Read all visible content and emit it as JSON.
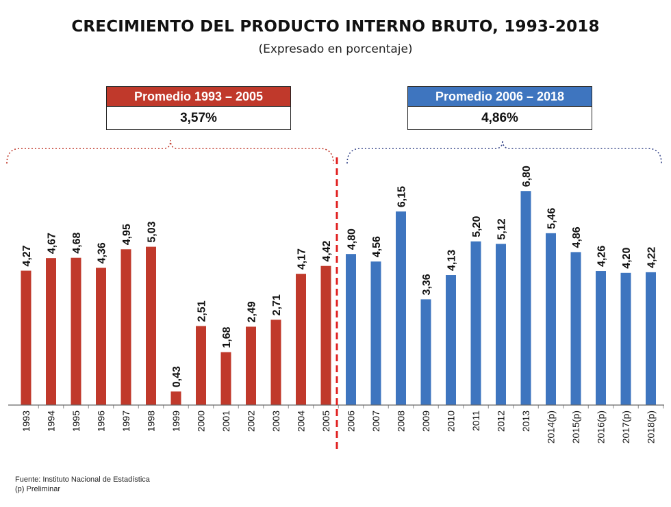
{
  "title": "CRECIMIENTO DEL PRODUCTO INTERNO BRUTO, 1993-2018",
  "subtitle": "(Expresado en porcentaje)",
  "averages": {
    "left": {
      "label": "Promedio 1993 – 2005",
      "value": "3,57%"
    },
    "right": {
      "label": "Promedio 2006 – 2018",
      "value": "4,86%"
    }
  },
  "notes": {
    "source": "Fuente: Instituto Nacional de Estadística",
    "preliminary": "(p) Preliminar"
  },
  "colors": {
    "red": "#c0392b",
    "blue": "#3e75bf"
  },
  "chart_data": {
    "type": "bar",
    "categories": [
      "1993",
      "1994",
      "1995",
      "1996",
      "1997",
      "1998",
      "1999",
      "2000",
      "2001",
      "2002",
      "2003",
      "2004",
      "2005",
      "2006",
      "2007",
      "2008",
      "2009",
      "2010",
      "2011",
      "2012",
      "2013",
      "2014(p)",
      "2015(p)",
      "2016(p)",
      "2017(p)",
      "2018(p)"
    ],
    "values": [
      4.27,
      4.67,
      4.68,
      4.36,
      4.95,
      5.03,
      0.43,
      2.51,
      1.68,
      2.49,
      2.71,
      4.17,
      4.42,
      4.8,
      4.56,
      6.15,
      3.36,
      4.13,
      5.2,
      5.12,
      6.8,
      5.46,
      4.86,
      4.26,
      4.2,
      4.22
    ],
    "data_labels": [
      "4,27",
      "4,67",
      "4,68",
      "4,36",
      "4,95",
      "5,03",
      "0,43",
      "2,51",
      "1,68",
      "2,49",
      "2,71",
      "4,17",
      "4,42",
      "4,80",
      "4,56",
      "6,15",
      "3,36",
      "4,13",
      "5,20",
      "5,12",
      "6,80",
      "5,46",
      "4,86",
      "4,26",
      "4,20",
      "4,22"
    ],
    "bar_colors": [
      "#c0392b",
      "#c0392b",
      "#c0392b",
      "#c0392b",
      "#c0392b",
      "#c0392b",
      "#c0392b",
      "#c0392b",
      "#c0392b",
      "#c0392b",
      "#c0392b",
      "#c0392b",
      "#c0392b",
      "#3e75bf",
      "#3e75bf",
      "#3e75bf",
      "#3e75bf",
      "#3e75bf",
      "#3e75bf",
      "#3e75bf",
      "#3e75bf",
      "#3e75bf",
      "#3e75bf",
      "#3e75bf",
      "#3e75bf",
      "#3e75bf"
    ],
    "title": "CRECIMIENTO DEL PRODUCTO INTERNO BRUTO, 1993-2018",
    "subtitle": "(Expresado en porcentaje)",
    "xlabel": "",
    "ylabel": "",
    "ylim": [
      0,
      7
    ],
    "grid": false
  }
}
